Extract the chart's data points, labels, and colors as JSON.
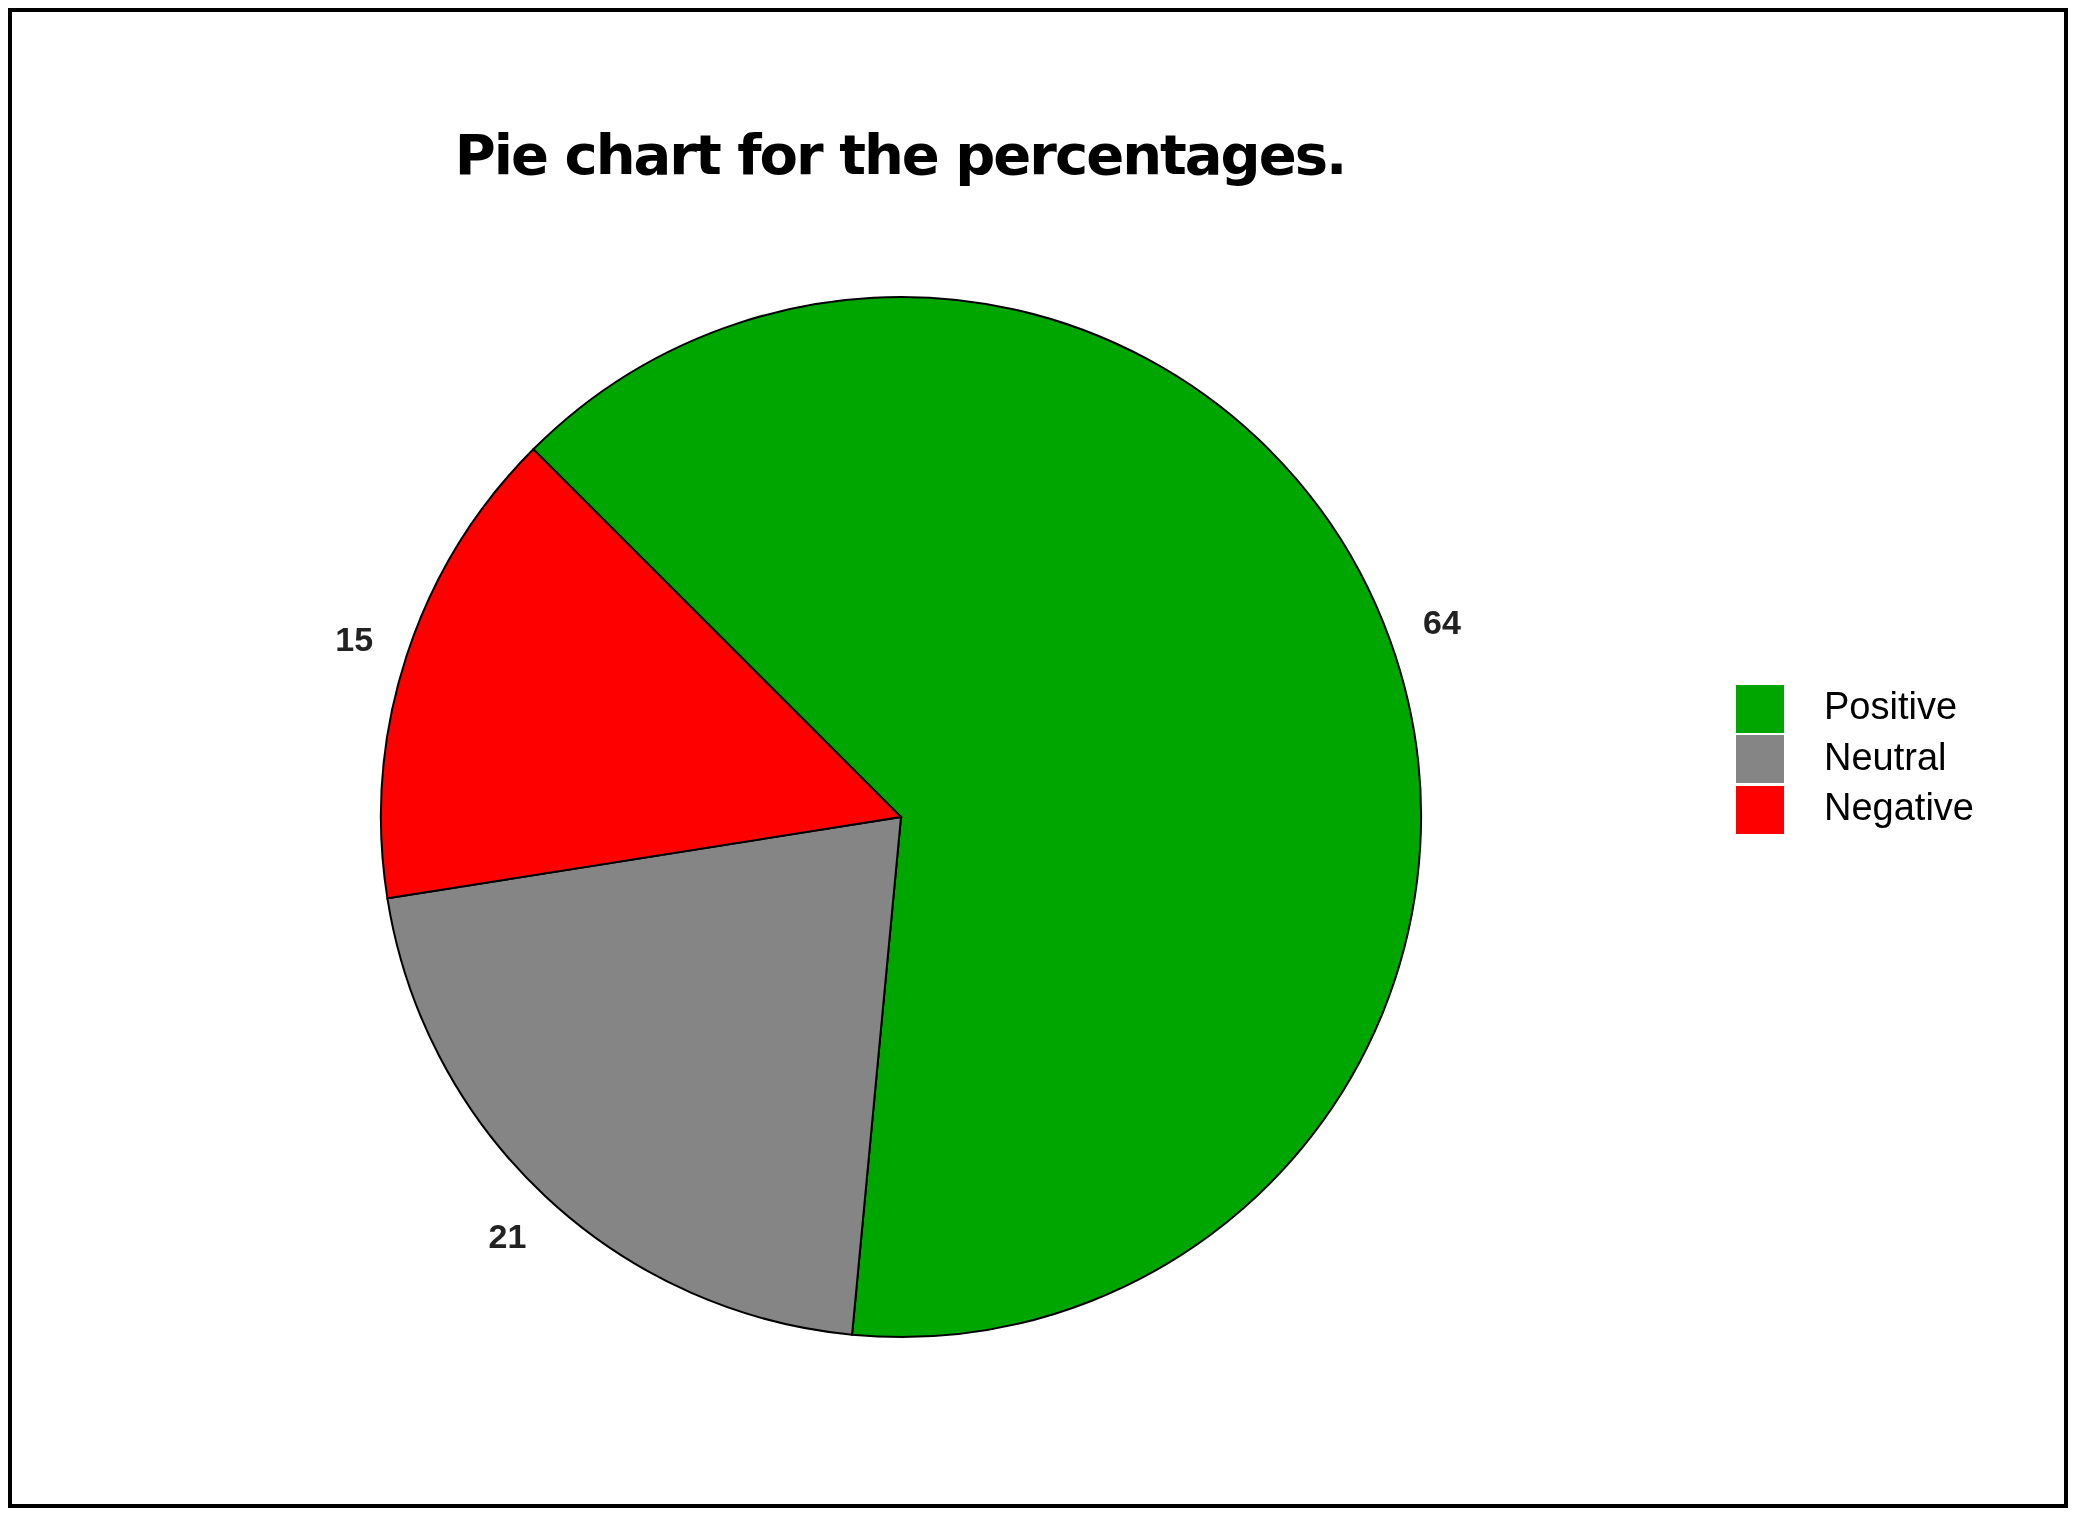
{
  "chart_data": {
    "type": "pie",
    "title": "Pie chart for the percentages.",
    "categories": [
      "Positive",
      "Neutral",
      "Negative"
    ],
    "values": [
      64,
      21,
      15
    ],
    "colors": [
      "#00a600",
      "#858585",
      "#ff0000"
    ],
    "data_labels": true,
    "legend": "right"
  }
}
